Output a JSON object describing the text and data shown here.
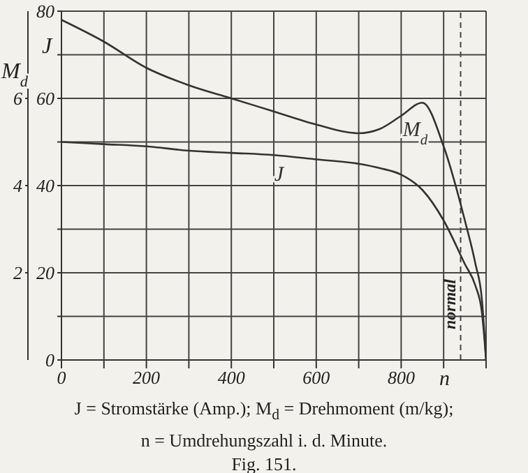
{
  "chart_data": {
    "type": "line",
    "ylabel": "J",
    "y2label": "M$_{d}$",
    "xlabel": "n",
    "x": [
      0,
      100,
      200,
      300,
      400,
      500,
      600,
      700,
      750,
      800,
      850,
      900,
      950,
      975,
      990,
      1000
    ],
    "series": [
      {
        "name": "M$_{d}$",
        "color": "#333333",
        "axis": "y2",
        "values": [
          7.8,
          7.3,
          6.7,
          6.3,
          6.0,
          5.7,
          5.4,
          5.2,
          5.3,
          5.6,
          5.9,
          4.9,
          3.2,
          2.2,
          1.4,
          0
        ]
      },
      {
        "name": "J",
        "color": "#333333",
        "values": [
          50,
          49.5,
          49,
          48,
          47.5,
          47,
          46,
          45,
          44,
          42.5,
          39,
          32,
          22,
          17,
          11,
          0
        ]
      }
    ],
    "xlim": [
      0,
      1000
    ],
    "xticks": [
      0,
      {
        "value": 100,
        "label": null
      },
      200,
      {
        "value": 300,
        "label": null
      },
      400,
      {
        "value": 500,
        "label": null
      },
      600,
      {
        "value": 700,
        "label": null
      },
      800,
      {
        "value": 900,
        "label": null
      },
      {
        "value": 1000,
        "label": null
      }
    ],
    "ylim": [
      0,
      80
    ],
    "yticks": [
      0,
      {
        "value": 10,
        "label": null
      },
      20,
      {
        "value": 30,
        "label": null
      },
      40,
      {
        "value": 50,
        "label": null
      },
      60,
      {
        "value": 70,
        "label": null
      },
      80
    ],
    "y2lim": [
      0,
      8
    ],
    "y2ticks": [
      2,
      4,
      6
    ],
    "grid": true,
    "legend": false,
    "marker": "none",
    "line_style": "solid",
    "ref_lines": [
      {
        "axis": "x",
        "value": 940,
        "label": "normal",
        "line_style": "dashed"
      }
    ],
    "annotations": [
      "J = Stromstärke (Amp.); M$_{d}$ = Drehmoment (m/kg);",
      "n = Umdrehungszahl i. d. Minute.",
      "Fig. 151."
    ]
  }
}
